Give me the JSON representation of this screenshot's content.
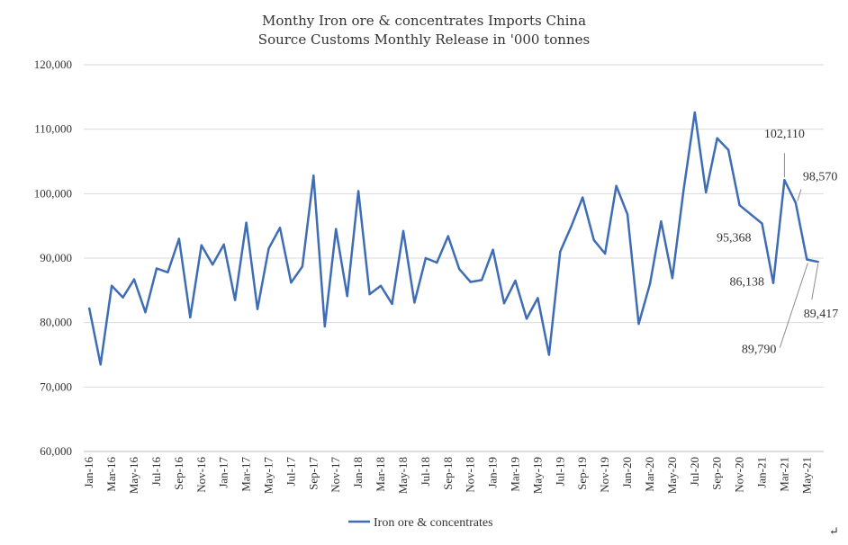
{
  "chart_data": {
    "type": "line",
    "title": "Monthy Iron ore & concentrates Imports  China",
    "subtitle": "Source Customs Monthly Release in '000 tonnes",
    "xlabel": "",
    "ylabel": "",
    "ylim": [
      60000,
      120000
    ],
    "y_ticks": [
      "60,000",
      "70,000",
      "80,000",
      "90,000",
      "100,000",
      "110,000",
      "120,000"
    ],
    "grid": true,
    "legend_position": "bottom",
    "x_tick_labels": [
      "Jan-16",
      "Mar-16",
      "May-16",
      "Jul-16",
      "Sep-16",
      "Nov-16",
      "Jan-17",
      "Mar-17",
      "May-17",
      "Jul-17",
      "Sep-17",
      "Nov-17",
      "Jan-18",
      "Mar-18",
      "May-18",
      "Jul-18",
      "Sep-18",
      "Nov-18",
      "Jan-19",
      "Mar-19",
      "May-19",
      "Jul-19",
      "Sep-19",
      "Nov-19",
      "Jan-20",
      "Mar-20",
      "May-20",
      "Jul-20",
      "Sep-20",
      "Nov-20",
      "Jan-21",
      "Mar-21",
      "May-21"
    ],
    "x": [
      "Jan-16",
      "Feb-16",
      "Mar-16",
      "Apr-16",
      "May-16",
      "Jun-16",
      "Jul-16",
      "Aug-16",
      "Sep-16",
      "Oct-16",
      "Nov-16",
      "Dec-16",
      "Jan-17",
      "Feb-17",
      "Mar-17",
      "Apr-17",
      "May-17",
      "Jun-17",
      "Jul-17",
      "Aug-17",
      "Sep-17",
      "Oct-17",
      "Nov-17",
      "Dec-17",
      "Jan-18",
      "Feb-18",
      "Mar-18",
      "Apr-18",
      "May-18",
      "Jun-18",
      "Jul-18",
      "Aug-18",
      "Sep-18",
      "Oct-18",
      "Nov-18",
      "Dec-18",
      "Jan-19",
      "Feb-19",
      "Mar-19",
      "Apr-19",
      "May-19",
      "Jun-19",
      "Jul-19",
      "Aug-19",
      "Sep-19",
      "Oct-19",
      "Nov-19",
      "Dec-19",
      "Jan-20",
      "Feb-20",
      "Mar-20",
      "Apr-20",
      "May-20",
      "Jun-20",
      "Jul-20",
      "Aug-20",
      "Sep-20",
      "Oct-20",
      "Nov-20",
      "Dec-20",
      "Jan-21",
      "Feb-21",
      "Mar-21",
      "Apr-21",
      "May-21",
      "Jun-21"
    ],
    "series": [
      {
        "name": "Iron ore & concentrates",
        "color": "#3e6db5",
        "values": [
          82200,
          73500,
          85700,
          83900,
          86700,
          81600,
          88400,
          87800,
          93000,
          80800,
          92000,
          89000,
          92100,
          83500,
          95500,
          82100,
          91500,
          94700,
          86200,
          88700,
          102800,
          79400,
          94500,
          84100,
          100400,
          84400,
          85700,
          82900,
          94200,
          83100,
          90000,
          89300,
          93400,
          88300,
          86300,
          86600,
          91300,
          83000,
          86500,
          80600,
          83800,
          75000,
          91000,
          95000,
          99400,
          92800,
          90700,
          101200,
          96800,
          79800,
          86000,
          95700,
          86900,
          100500,
          112600,
          100200,
          108600,
          106800,
          98200,
          96800,
          95368,
          86138,
          102110,
          98570,
          89790,
          89417
        ]
      }
    ],
    "annotations": [
      {
        "label": "102,110",
        "index": 62
      },
      {
        "label": "98,570",
        "index": 63
      },
      {
        "label": "95,368",
        "index": 60
      },
      {
        "label": "86,138",
        "index": 61
      },
      {
        "label": "89,417",
        "index": 65
      },
      {
        "label": "89,790",
        "index": 64
      }
    ],
    "footer_mark": "↵"
  }
}
